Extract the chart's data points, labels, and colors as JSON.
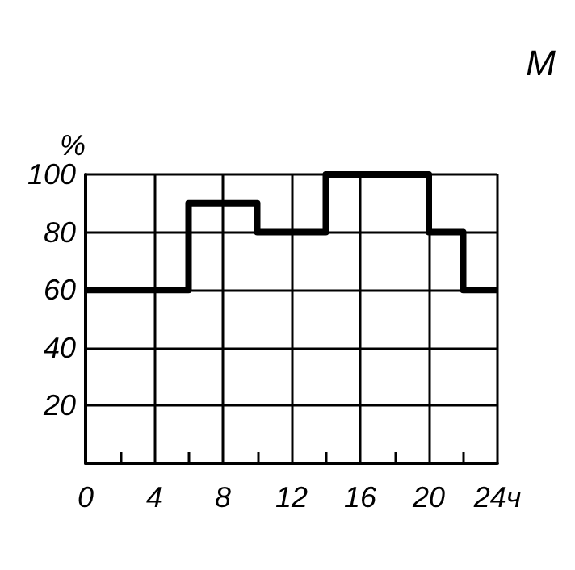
{
  "chart_data": {
    "type": "step",
    "ylabel": "%",
    "annotations": [
      "М"
    ],
    "x": [
      0,
      6,
      10,
      14,
      20,
      22,
      24
    ],
    "values": [
      60,
      90,
      80,
      100,
      80,
      60,
      60
    ],
    "color": "#000000",
    "xlim": [
      0,
      24
    ],
    "xticks": [
      0,
      {
        "value": 2,
        "label": null
      },
      4,
      {
        "value": 6,
        "label": null
      },
      8,
      {
        "value": 10,
        "label": null
      },
      12,
      {
        "value": 14,
        "label": null
      },
      16,
      {
        "value": 18,
        "label": null
      },
      20,
      {
        "value": 22,
        "label": null
      },
      {
        "value": 24,
        "label": "24ч"
      }
    ],
    "ylim": [
      0,
      100
    ],
    "yticks": [
      20,
      40,
      60,
      80,
      100
    ],
    "grid": true,
    "marker": "none"
  }
}
